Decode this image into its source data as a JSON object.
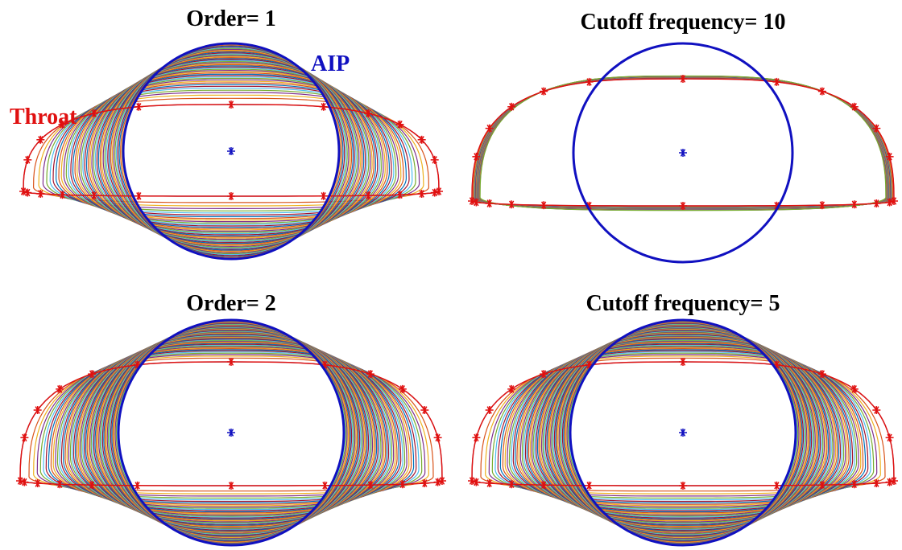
{
  "panels": [
    {
      "title": "Order= 1"
    },
    {
      "title": "Cutoff frequency= 10"
    },
    {
      "title": "Order= 2"
    },
    {
      "title": "Cutoff frequency= 5"
    }
  ],
  "annotations": {
    "aip": "AIP",
    "throat": "Throat"
  }
}
